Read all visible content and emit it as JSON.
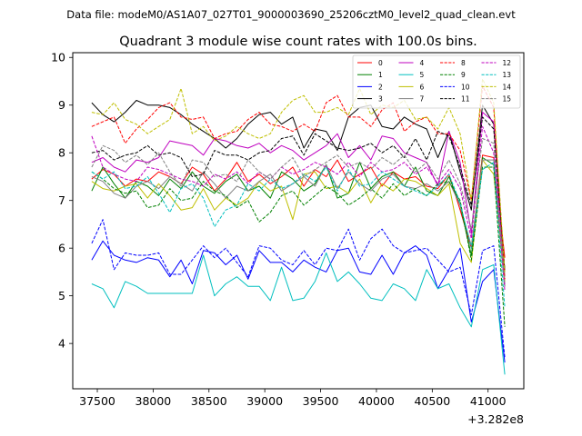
{
  "chart_data": {
    "type": "line",
    "suptitle": "Data file: modeM0/AS1A07_027T01_9000003690_25206cztM0_level2_quad_clean.evt",
    "title": "Quadrant 3 module wise count rates with 100.0s bins.",
    "xlabel": "",
    "ylabel": "",
    "x_offset_label": "+3.282e8",
    "xlim": [
      37280,
      41320
    ],
    "ylim": [
      3.05,
      10.1
    ],
    "xticks": [
      37500,
      38000,
      38500,
      39000,
      39500,
      40000,
      40500,
      41000
    ],
    "yticks": [
      4,
      5,
      6,
      7,
      8,
      9,
      10
    ],
    "x": [
      37450,
      37550,
      37650,
      37750,
      37850,
      37950,
      38050,
      38150,
      38250,
      38350,
      38450,
      38550,
      38650,
      38750,
      38850,
      38950,
      39050,
      39150,
      39250,
      39350,
      39450,
      39550,
      39650,
      39750,
      39850,
      39950,
      40050,
      40150,
      40250,
      40350,
      40450,
      40550,
      40650,
      40750,
      40850,
      40950,
      41050,
      41150
    ],
    "legend_location": "upper right",
    "series": [
      {
        "name": "0",
        "color": "#ff0000",
        "dash": "solid",
        "values": [
          7.45,
          7.65,
          7.55,
          7.3,
          7.45,
          7.4,
          7.6,
          7.5,
          7.35,
          7.7,
          7.55,
          7.2,
          7.45,
          7.8,
          7.4,
          7.55,
          7.35,
          7.5,
          7.7,
          7.3,
          7.65,
          7.5,
          7.85,
          7.4,
          7.55,
          7.7,
          7.3,
          7.6,
          7.45,
          7.5,
          7.3,
          7.25,
          7.55,
          6.8,
          6.0,
          7.95,
          7.9,
          5.8
        ]
      },
      {
        "name": "1",
        "color": "#008000",
        "dash": "solid",
        "values": [
          7.2,
          7.7,
          7.35,
          7.05,
          7.4,
          7.3,
          7.1,
          7.45,
          7.25,
          7.6,
          7.3,
          7.15,
          7.4,
          7.55,
          7.2,
          7.3,
          7.05,
          7.6,
          7.45,
          7.2,
          7.35,
          7.75,
          7.05,
          7.15,
          7.8,
          7.25,
          7.5,
          7.6,
          7.3,
          7.7,
          7.2,
          7.1,
          7.5,
          6.9,
          5.85,
          7.9,
          7.75,
          5.2
        ]
      },
      {
        "name": "2",
        "color": "#0000ff",
        "dash": "solid",
        "values": [
          5.75,
          6.15,
          5.85,
          5.75,
          5.7,
          5.8,
          5.75,
          5.4,
          5.75,
          5.25,
          5.95,
          5.9,
          5.65,
          5.85,
          5.35,
          5.95,
          5.7,
          5.7,
          5.5,
          5.75,
          5.6,
          5.5,
          5.95,
          6.0,
          5.5,
          5.45,
          5.85,
          5.45,
          5.9,
          6.05,
          5.85,
          5.15,
          5.55,
          6.0,
          4.45,
          5.3,
          5.55,
          3.6
        ]
      },
      {
        "name": "3",
        "color": "#000000",
        "dash": "solid",
        "values": [
          9.05,
          8.8,
          8.65,
          8.85,
          9.1,
          9.0,
          9.0,
          8.95,
          8.8,
          8.6,
          8.45,
          8.3,
          8.1,
          8.3,
          8.6,
          8.8,
          8.85,
          8.6,
          8.75,
          8.1,
          8.5,
          8.45,
          8.05,
          8.75,
          8.95,
          9.0,
          8.55,
          8.5,
          8.75,
          8.6,
          8.5,
          7.9,
          8.45,
          7.6,
          6.8,
          9.0,
          8.6,
          5.5
        ]
      },
      {
        "name": "4",
        "color": "#bf00bf",
        "dash": "solid",
        "values": [
          7.8,
          7.9,
          7.7,
          7.6,
          7.85,
          7.8,
          7.9,
          8.25,
          8.2,
          8.15,
          7.95,
          8.3,
          8.25,
          8.15,
          8.1,
          8.2,
          8.0,
          8.15,
          8.05,
          7.85,
          8.0,
          8.15,
          8.4,
          7.9,
          8.15,
          7.85,
          8.35,
          8.3,
          8.0,
          7.9,
          7.8,
          7.3,
          8.45,
          7.8,
          6.3,
          8.85,
          8.65,
          5.2
        ]
      },
      {
        "name": "5",
        "color": "#00bfbf",
        "dash": "solid",
        "values": [
          5.25,
          5.15,
          4.75,
          5.3,
          5.2,
          5.05,
          5.05,
          5.05,
          5.05,
          5.05,
          5.85,
          5.0,
          5.25,
          5.4,
          5.2,
          5.2,
          4.9,
          5.6,
          4.9,
          4.95,
          5.3,
          5.9,
          5.3,
          5.5,
          5.25,
          4.95,
          4.9,
          5.25,
          5.15,
          4.9,
          5.55,
          5.15,
          5.25,
          4.75,
          4.35,
          5.55,
          5.65,
          3.35
        ]
      },
      {
        "name": "6",
        "color": "#bfbf00",
        "dash": "solid",
        "values": [
          7.4,
          7.25,
          7.2,
          7.3,
          7.35,
          7.05,
          7.35,
          7.1,
          6.8,
          6.85,
          7.25,
          6.8,
          7.05,
          6.9,
          7.05,
          7.4,
          7.2,
          7.3,
          6.6,
          7.55,
          7.6,
          7.25,
          7.3,
          7.15,
          7.45,
          6.95,
          7.35,
          7.2,
          7.45,
          7.4,
          7.25,
          7.1,
          7.35,
          6.1,
          5.7,
          7.85,
          7.55,
          5.3
        ]
      },
      {
        "name": "7",
        "color": "#808080",
        "dash": "solid",
        "values": [
          7.5,
          7.4,
          7.15,
          7.05,
          7.3,
          7.4,
          7.25,
          7.5,
          7.35,
          7.2,
          7.6,
          7.35,
          7.05,
          7.3,
          7.2,
          7.4,
          7.55,
          7.2,
          7.35,
          7.5,
          7.3,
          7.75,
          7.25,
          7.6,
          7.35,
          7.2,
          7.45,
          7.55,
          7.3,
          7.25,
          7.35,
          7.2,
          7.4,
          6.9,
          6.05,
          7.85,
          7.85,
          5.4
        ]
      },
      {
        "name": "8",
        "color": "#ff0000",
        "dash": "dashed",
        "values": [
          8.55,
          8.65,
          8.75,
          8.2,
          8.5,
          8.7,
          8.95,
          9.05,
          8.75,
          8.7,
          8.75,
          8.3,
          8.4,
          8.45,
          8.7,
          8.85,
          8.6,
          8.55,
          8.45,
          8.6,
          8.45,
          9.05,
          9.2,
          8.75,
          8.75,
          8.55,
          8.9,
          9.05,
          8.45,
          8.65,
          8.75,
          8.4,
          8.4,
          8.05,
          7.0,
          9.4,
          8.95,
          5.35
        ]
      },
      {
        "name": "9",
        "color": "#008000",
        "dash": "dashed",
        "values": [
          7.6,
          7.45,
          7.25,
          7.15,
          7.2,
          6.85,
          6.9,
          7.25,
          7.0,
          7.05,
          7.4,
          7.2,
          7.1,
          6.85,
          7.0,
          6.55,
          6.75,
          7.1,
          7.2,
          6.9,
          7.1,
          7.3,
          7.15,
          6.9,
          7.05,
          7.25,
          7.05,
          7.35,
          7.1,
          7.25,
          7.1,
          7.35,
          7.4,
          7.0,
          5.75,
          7.7,
          7.7,
          4.35
        ]
      },
      {
        "name": "10",
        "color": "#0000ff",
        "dash": "dashed",
        "values": [
          6.1,
          6.6,
          5.55,
          5.9,
          5.85,
          5.85,
          5.9,
          5.45,
          5.45,
          5.75,
          6.05,
          5.8,
          6.0,
          5.7,
          5.4,
          6.05,
          6.0,
          5.75,
          5.65,
          5.95,
          5.65,
          6.0,
          5.95,
          6.4,
          5.75,
          6.2,
          6.4,
          6.05,
          5.9,
          5.95,
          6.0,
          5.75,
          5.5,
          5.6,
          4.6,
          5.95,
          6.05,
          3.7
        ]
      },
      {
        "name": "11",
        "color": "#000000",
        "dash": "dashed",
        "values": [
          8.0,
          8.05,
          7.85,
          7.95,
          8.0,
          8.15,
          7.95,
          8.0,
          7.9,
          7.5,
          7.55,
          8.05,
          7.95,
          7.95,
          7.85,
          8.0,
          8.05,
          8.3,
          8.35,
          7.95,
          8.4,
          8.25,
          8.1,
          8.05,
          8.1,
          8.2,
          8.0,
          8.15,
          7.9,
          8.3,
          7.85,
          8.45,
          8.35,
          7.7,
          6.9,
          8.75,
          8.5,
          5.55
        ]
      },
      {
        "name": "12",
        "color": "#bf00bf",
        "dash": "dashed",
        "values": [
          8.35,
          7.7,
          7.55,
          7.45,
          7.4,
          7.7,
          7.65,
          7.55,
          7.45,
          7.4,
          7.3,
          7.55,
          7.45,
          7.6,
          7.35,
          7.6,
          7.45,
          7.7,
          7.55,
          7.65,
          7.8,
          7.7,
          7.55,
          7.8,
          7.5,
          7.8,
          7.6,
          7.65,
          7.8,
          7.55,
          7.7,
          7.35,
          7.65,
          7.25,
          6.2,
          8.55,
          8.0,
          5.1
        ]
      },
      {
        "name": "13",
        "color": "#00bfbf",
        "dash": "dashed",
        "values": [
          7.6,
          7.45,
          7.6,
          7.25,
          7.3,
          7.5,
          7.15,
          6.75,
          7.25,
          7.35,
          7.05,
          6.45,
          6.8,
          6.9,
          7.35,
          7.2,
          7.45,
          7.25,
          7.35,
          7.55,
          7.4,
          7.7,
          7.2,
          7.65,
          7.3,
          7.35,
          7.6,
          7.45,
          7.3,
          7.2,
          7.1,
          7.3,
          7.55,
          6.95,
          6.0,
          7.65,
          7.8,
          4.75
        ]
      },
      {
        "name": "14",
        "color": "#bfbf00",
        "dash": "dashed",
        "values": [
          8.85,
          8.8,
          9.05,
          8.7,
          8.6,
          8.4,
          8.55,
          8.7,
          9.35,
          8.4,
          8.55,
          8.25,
          8.35,
          8.55,
          8.4,
          8.3,
          8.4,
          8.85,
          9.1,
          9.2,
          8.85,
          8.85,
          8.95,
          8.8,
          9.35,
          8.8,
          9.0,
          8.95,
          9.1,
          8.7,
          8.75,
          8.5,
          8.95,
          8.4,
          7.0,
          9.55,
          9.05,
          5.5
        ]
      },
      {
        "name": "15",
        "color": "#808080",
        "dash": "dashed",
        "values": [
          7.7,
          8.15,
          8.05,
          7.8,
          7.95,
          7.75,
          8.0,
          7.6,
          7.3,
          7.85,
          7.8,
          7.5,
          7.55,
          7.4,
          7.85,
          7.6,
          7.45,
          7.7,
          7.9,
          7.5,
          7.65,
          7.8,
          7.95,
          7.7,
          7.8,
          7.65,
          7.9,
          7.75,
          7.95,
          7.6,
          7.8,
          7.45,
          7.85,
          7.35,
          6.4,
          8.3,
          8.2,
          5.2
        ]
      }
    ]
  }
}
